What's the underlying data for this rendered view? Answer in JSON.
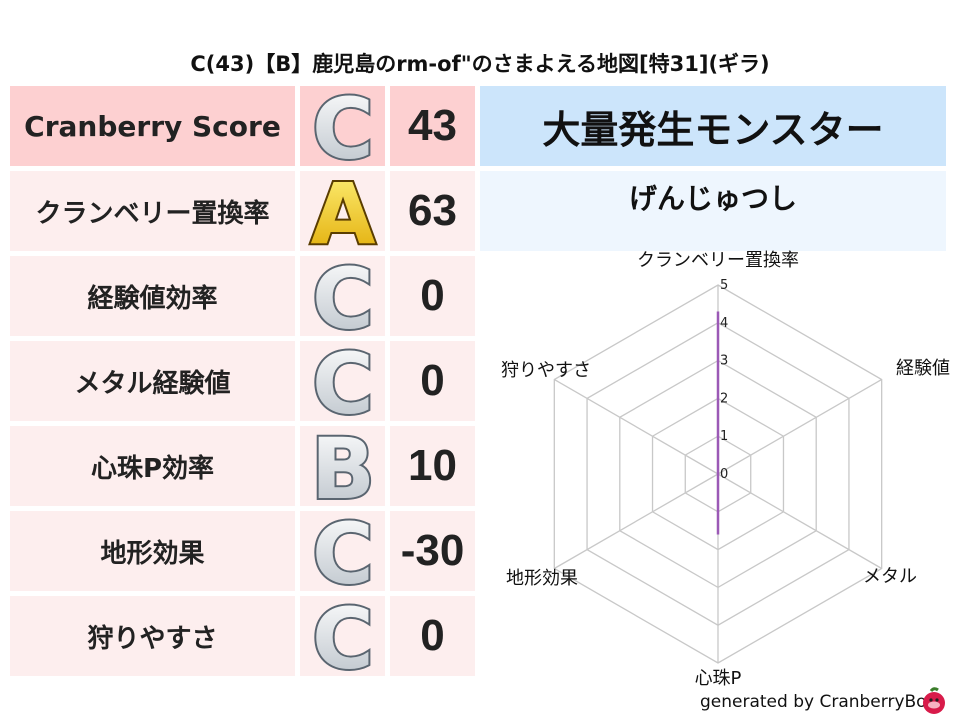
{
  "title": "C(43)【B】鹿児島のrm-of\"のさまよえる地図[特31](ギラ)",
  "rows": [
    {
      "label": "Cranberry Score",
      "grade": "C",
      "value": "43"
    },
    {
      "label": "クランベリー置換率",
      "grade": "A",
      "value": "63"
    },
    {
      "label": "経験値効率",
      "grade": "C",
      "value": "0"
    },
    {
      "label": "メタル経験値",
      "grade": "C",
      "value": "0"
    },
    {
      "label": "心珠P効率",
      "grade": "B",
      "value": "10"
    },
    {
      "label": "地形効果",
      "grade": "C",
      "value": "-30"
    },
    {
      "label": "狩りやすさ",
      "grade": "C",
      "value": "0"
    }
  ],
  "monster": {
    "header": "大量発生モンスター",
    "name": "げんじゅつし"
  },
  "footer": "generated by CranberryBot",
  "colors": {
    "header_row": "#fdd0d1",
    "row": "#fdeeee",
    "monster_header": "#cce5fb",
    "monster_name": "#eef6fe",
    "series": "#9b59b6"
  },
  "chart_data": {
    "type": "radar",
    "axes": [
      "クランベリー置換率",
      "経験値",
      "メタル",
      "心珠P",
      "地形効果",
      "狩りやすさ"
    ],
    "values": [
      4.3,
      0,
      0,
      1.6,
      0,
      0
    ],
    "range": [
      0,
      5
    ],
    "ticks": [
      "0",
      "1",
      "2",
      "3",
      "4",
      "5"
    ],
    "grid": true
  }
}
